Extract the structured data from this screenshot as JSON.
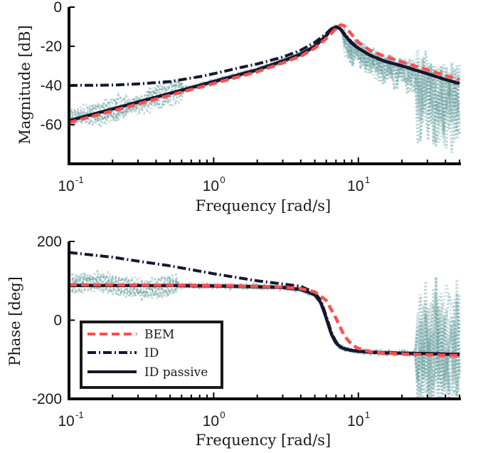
{
  "chart_data": [
    {
      "type": "line",
      "x_scale": "log",
      "xlabel": "Frequency [rad/s]",
      "ylabel": "Magnitude [dB]",
      "xlim": [
        0.1,
        50
      ],
      "ylim": [
        -80,
        0
      ],
      "x_ticks": [
        0.1,
        1,
        10
      ],
      "x_tick_labels": [
        {
          "base": "10",
          "exp": "-1"
        },
        {
          "base": "10",
          "exp": "0"
        },
        {
          "base": "10",
          "exp": "1"
        }
      ],
      "y_ticks": [
        {
          "value": 0,
          "label": "0"
        },
        {
          "value": -20,
          "label": "-20"
        },
        {
          "value": -40,
          "label": "-40"
        },
        {
          "value": -60,
          "label": "-60"
        }
      ],
      "grid": false,
      "series": [
        {
          "name": "BEM",
          "color": "#ff4f4f",
          "style": "dashed",
          "x": [
            0.1,
            0.2,
            0.5,
            1,
            2,
            3,
            4,
            5,
            6,
            7,
            7.5,
            8,
            9,
            10,
            12,
            15,
            20,
            30,
            40,
            50
          ],
          "y": [
            -59,
            -53,
            -45,
            -39,
            -33,
            -28.5,
            -25,
            -21,
            -16,
            -11,
            -9,
            -9.5,
            -14,
            -18,
            -22,
            -25,
            -28,
            -32,
            -35,
            -37
          ]
        },
        {
          "name": "ID",
          "color": "#16162e",
          "style": "dashdot",
          "x": [
            0.1,
            0.2,
            0.3,
            0.5,
            0.8,
            1,
            1.5,
            2,
            3,
            4,
            5,
            6,
            6.5,
            7,
            7.5,
            8,
            9,
            10,
            12,
            15,
            20,
            30,
            40,
            50
          ],
          "y": [
            -40,
            -39.8,
            -39.2,
            -38,
            -35.5,
            -34,
            -31,
            -29,
            -25.5,
            -22,
            -18,
            -13.5,
            -11,
            -10,
            -11,
            -13.5,
            -18,
            -21,
            -24.5,
            -27.5,
            -30,
            -34,
            -37,
            -39
          ]
        },
        {
          "name": "ID passive",
          "color": "#16162e",
          "style": "solid",
          "x": [
            0.1,
            0.2,
            0.5,
            1,
            2,
            3,
            4,
            5,
            6,
            6.5,
            7,
            7.5,
            8,
            9,
            10,
            12,
            15,
            20,
            30,
            40,
            50
          ],
          "y": [
            -58,
            -52,
            -44,
            -38,
            -32,
            -27.5,
            -24,
            -20,
            -14.5,
            -11.5,
            -10,
            -11,
            -14,
            -18.5,
            -21,
            -24.5,
            -27.5,
            -30,
            -34,
            -37,
            -39
          ]
        }
      ]
    },
    {
      "type": "line",
      "x_scale": "log",
      "xlabel": "Frequency [rad/s]",
      "ylabel": "Phase [deg]",
      "xlim": [
        0.1,
        50
      ],
      "ylim": [
        -200,
        200
      ],
      "x_ticks": [
        0.1,
        1,
        10
      ],
      "x_tick_labels": [
        {
          "base": "10",
          "exp": "-1"
        },
        {
          "base": "10",
          "exp": "0"
        },
        {
          "base": "10",
          "exp": "1"
        }
      ],
      "y_ticks": [
        {
          "value": 200,
          "label": "200"
        },
        {
          "value": 0,
          "label": "0"
        },
        {
          "value": -200,
          "label": "-200"
        }
      ],
      "grid": false,
      "legend": {
        "placement": "bottom-left",
        "entries": [
          "BEM",
          "ID",
          "ID passive"
        ]
      },
      "series": [
        {
          "name": "BEM",
          "color": "#ff4f4f",
          "style": "dashed",
          "x": [
            0.1,
            0.5,
            1,
            2,
            3,
            4,
            5,
            6,
            7,
            8,
            9,
            10,
            12,
            15,
            20,
            30,
            50
          ],
          "y": [
            90,
            89,
            88,
            86,
            84,
            80,
            72,
            50,
            5,
            -40,
            -62,
            -72,
            -80,
            -84,
            -86,
            -88,
            -90
          ]
        },
        {
          "name": "ID",
          "color": "#16162e",
          "style": "dashdot",
          "x": [
            0.1,
            0.2,
            0.3,
            0.5,
            1,
            2,
            3,
            4,
            5,
            5.5,
            6,
            6.5,
            7,
            7.5,
            8,
            9,
            10,
            12,
            15,
            20,
            30,
            50
          ],
          "y": [
            172,
            160,
            150,
            138,
            118,
            100,
            92,
            86,
            70,
            50,
            10,
            -30,
            -55,
            -67,
            -72,
            -77,
            -79,
            -81,
            -83,
            -84,
            -85,
            -87
          ]
        },
        {
          "name": "ID passive",
          "color": "#16162e",
          "style": "solid",
          "x": [
            0.1,
            0.5,
            1,
            2,
            3,
            4,
            5,
            5.5,
            6,
            6.5,
            7,
            7.5,
            8,
            9,
            10,
            12,
            15,
            20,
            30,
            50
          ],
          "y": [
            88,
            88,
            87,
            85,
            83,
            78,
            65,
            45,
            5,
            -35,
            -58,
            -68,
            -73,
            -77,
            -79,
            -81,
            -83,
            -84,
            -85,
            -87
          ]
        }
      ]
    }
  ]
}
